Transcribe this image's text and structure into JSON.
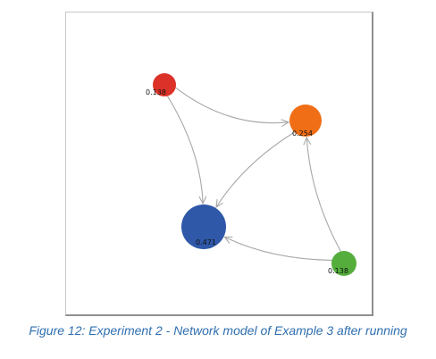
{
  "diagram": {
    "nodes": [
      {
        "id": "red",
        "label": "0.138",
        "color": "#dc3128"
      },
      {
        "id": "orange",
        "label": "0.254",
        "color": "#f06e16"
      },
      {
        "id": "blue",
        "label": "0.471",
        "color": "#2f58a8"
      },
      {
        "id": "green",
        "label": "0.138",
        "color": "#55ad3c"
      }
    ],
    "edges": [
      {
        "from": "red",
        "to": "orange"
      },
      {
        "from": "red",
        "to": "blue"
      },
      {
        "from": "orange",
        "to": "blue"
      },
      {
        "from": "green",
        "to": "orange"
      },
      {
        "from": "green",
        "to": "blue"
      }
    ],
    "edge_color": "#a8a8a8"
  },
  "caption": "Figure 12: Experiment 2 - Network model of Example 3 after running"
}
